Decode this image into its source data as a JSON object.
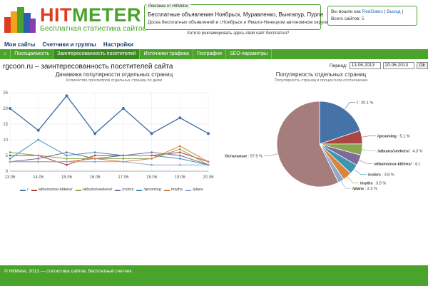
{
  "logo": {
    "hit": "HIT",
    "meter": "METER",
    "subtitle": "Бесплатная статистика сайтов"
  },
  "ad": {
    "tab": "Реклама от HitMeter",
    "title": "Бесплатные объявления Ноябрьск, Муравленко, Вынгапур, Пурпе",
    "desc": "Доска бесплатных объявлений в г.Ноябрьск и Ямало-Ненецком автономном округе",
    "link": "Хотите рекламировать здесь свой сайт бесплатно?"
  },
  "user": {
    "prefix": "Вы вошли как",
    "name": "RedGates",
    "sep": "|",
    "logout": "Выход",
    "sep2": "|",
    "sites_label": "Всего сайтов:",
    "sites_count": "5"
  },
  "topmenu": [
    "Мои сайты",
    "Счетчики и группы",
    "Настройки"
  ],
  "nav": [
    "⌂",
    "Посещаемость",
    "Заинтересованность посетителей",
    "Источники трафика",
    "География",
    "SEO-параметры"
  ],
  "page": {
    "title": "rgcoon.ru – заинтересованность посетителей сайта"
  },
  "period": {
    "label": "Период:",
    "from": "13.06.2013",
    "to": "20.06.2013",
    "ok": "Ok"
  },
  "line_chart": {
    "title": "Динамика популярности отдельных страниц",
    "subtitle": "Количество просмотров отдельных страниц по дням"
  },
  "pie_chart": {
    "title": "Популярность отдельных страниц",
    "subtitle": "Популярность страниц в процентном соотношении"
  },
  "colors": {
    "brand_green": "#4aa32a",
    "logo_red": "#e03a1f"
  },
  "chart_data": [
    {
      "type": "line",
      "title": "Динамика популярности отдельных страниц",
      "subtitle": "Количество просмотров отдельных страниц по дням",
      "categories": [
        "13.06",
        "14.06",
        "15.06",
        "16.06",
        "17.06",
        "18.06",
        "19.06",
        "20.06"
      ],
      "ylim": [
        0,
        25
      ],
      "yticks": [
        0,
        5,
        10,
        15,
        20,
        25
      ],
      "grid": true,
      "legend_position": "bottom",
      "series": [
        {
          "name": "/",
          "color": "#4572a7",
          "values": [
            20,
            13,
            24,
            12,
            20,
            12,
            17,
            12
          ]
        },
        {
          "name": "/albums/our-kittens/",
          "color": "#aa4643",
          "values": [
            5,
            5,
            2,
            5,
            5,
            5,
            6,
            3
          ]
        },
        {
          "name": "/albums/seekers/",
          "color": "#89a54e",
          "values": [
            6,
            5,
            4,
            4,
            4,
            4,
            7,
            2
          ]
        },
        {
          "name": "/colors",
          "color": "#80699b",
          "values": [
            3,
            4,
            6,
            4,
            5,
            6,
            5,
            2
          ]
        },
        {
          "name": "/grooming",
          "color": "#3d96ae",
          "values": [
            4,
            10,
            5,
            6,
            5,
            5,
            4,
            2
          ]
        },
        {
          "name": "/myths",
          "color": "#db843d",
          "values": [
            3,
            3,
            3,
            4,
            3,
            4,
            8,
            3
          ]
        },
        {
          "name": "/plans",
          "color": "#92a8cd",
          "values": [
            3,
            3,
            3,
            3,
            3,
            2,
            2,
            2
          ]
        }
      ]
    },
    {
      "type": "pie",
      "title": "Популярность отдельных страниц",
      "subtitle": "Популярность страниц в процентном соотношении",
      "slices": [
        {
          "label": "/",
          "value": 20.1,
          "text": "20.1 %",
          "color": "#4572a7"
        },
        {
          "label": "/grooming",
          "value": 5.1,
          "text": "5.1 %",
          "color": "#aa4643"
        },
        {
          "label": "/albums/seekers/",
          "value": 4.3,
          "text": "4.3 %",
          "color": "#89a54e"
        },
        {
          "label": "/albums/our-kittens/",
          "value": 4.1,
          "text": "4.1",
          "color": "#80699b"
        },
        {
          "label": "/colors",
          "value": 3.8,
          "text": "3.8 %",
          "color": "#3d96ae"
        },
        {
          "label": "/myths",
          "value": 3.5,
          "text": "3.5 %",
          "color": "#db843d"
        },
        {
          "label": "/plans",
          "value": 2.3,
          "text": "2.3 %",
          "color": "#92a8cd"
        },
        {
          "label": "Остальные",
          "value": 57.9,
          "text": "57.9 %",
          "color": "#a47d7c"
        }
      ]
    }
  ],
  "footer": {
    "text": "© HitMeter, 2013 — статистика сайтов, бесплатный счетчик."
  }
}
